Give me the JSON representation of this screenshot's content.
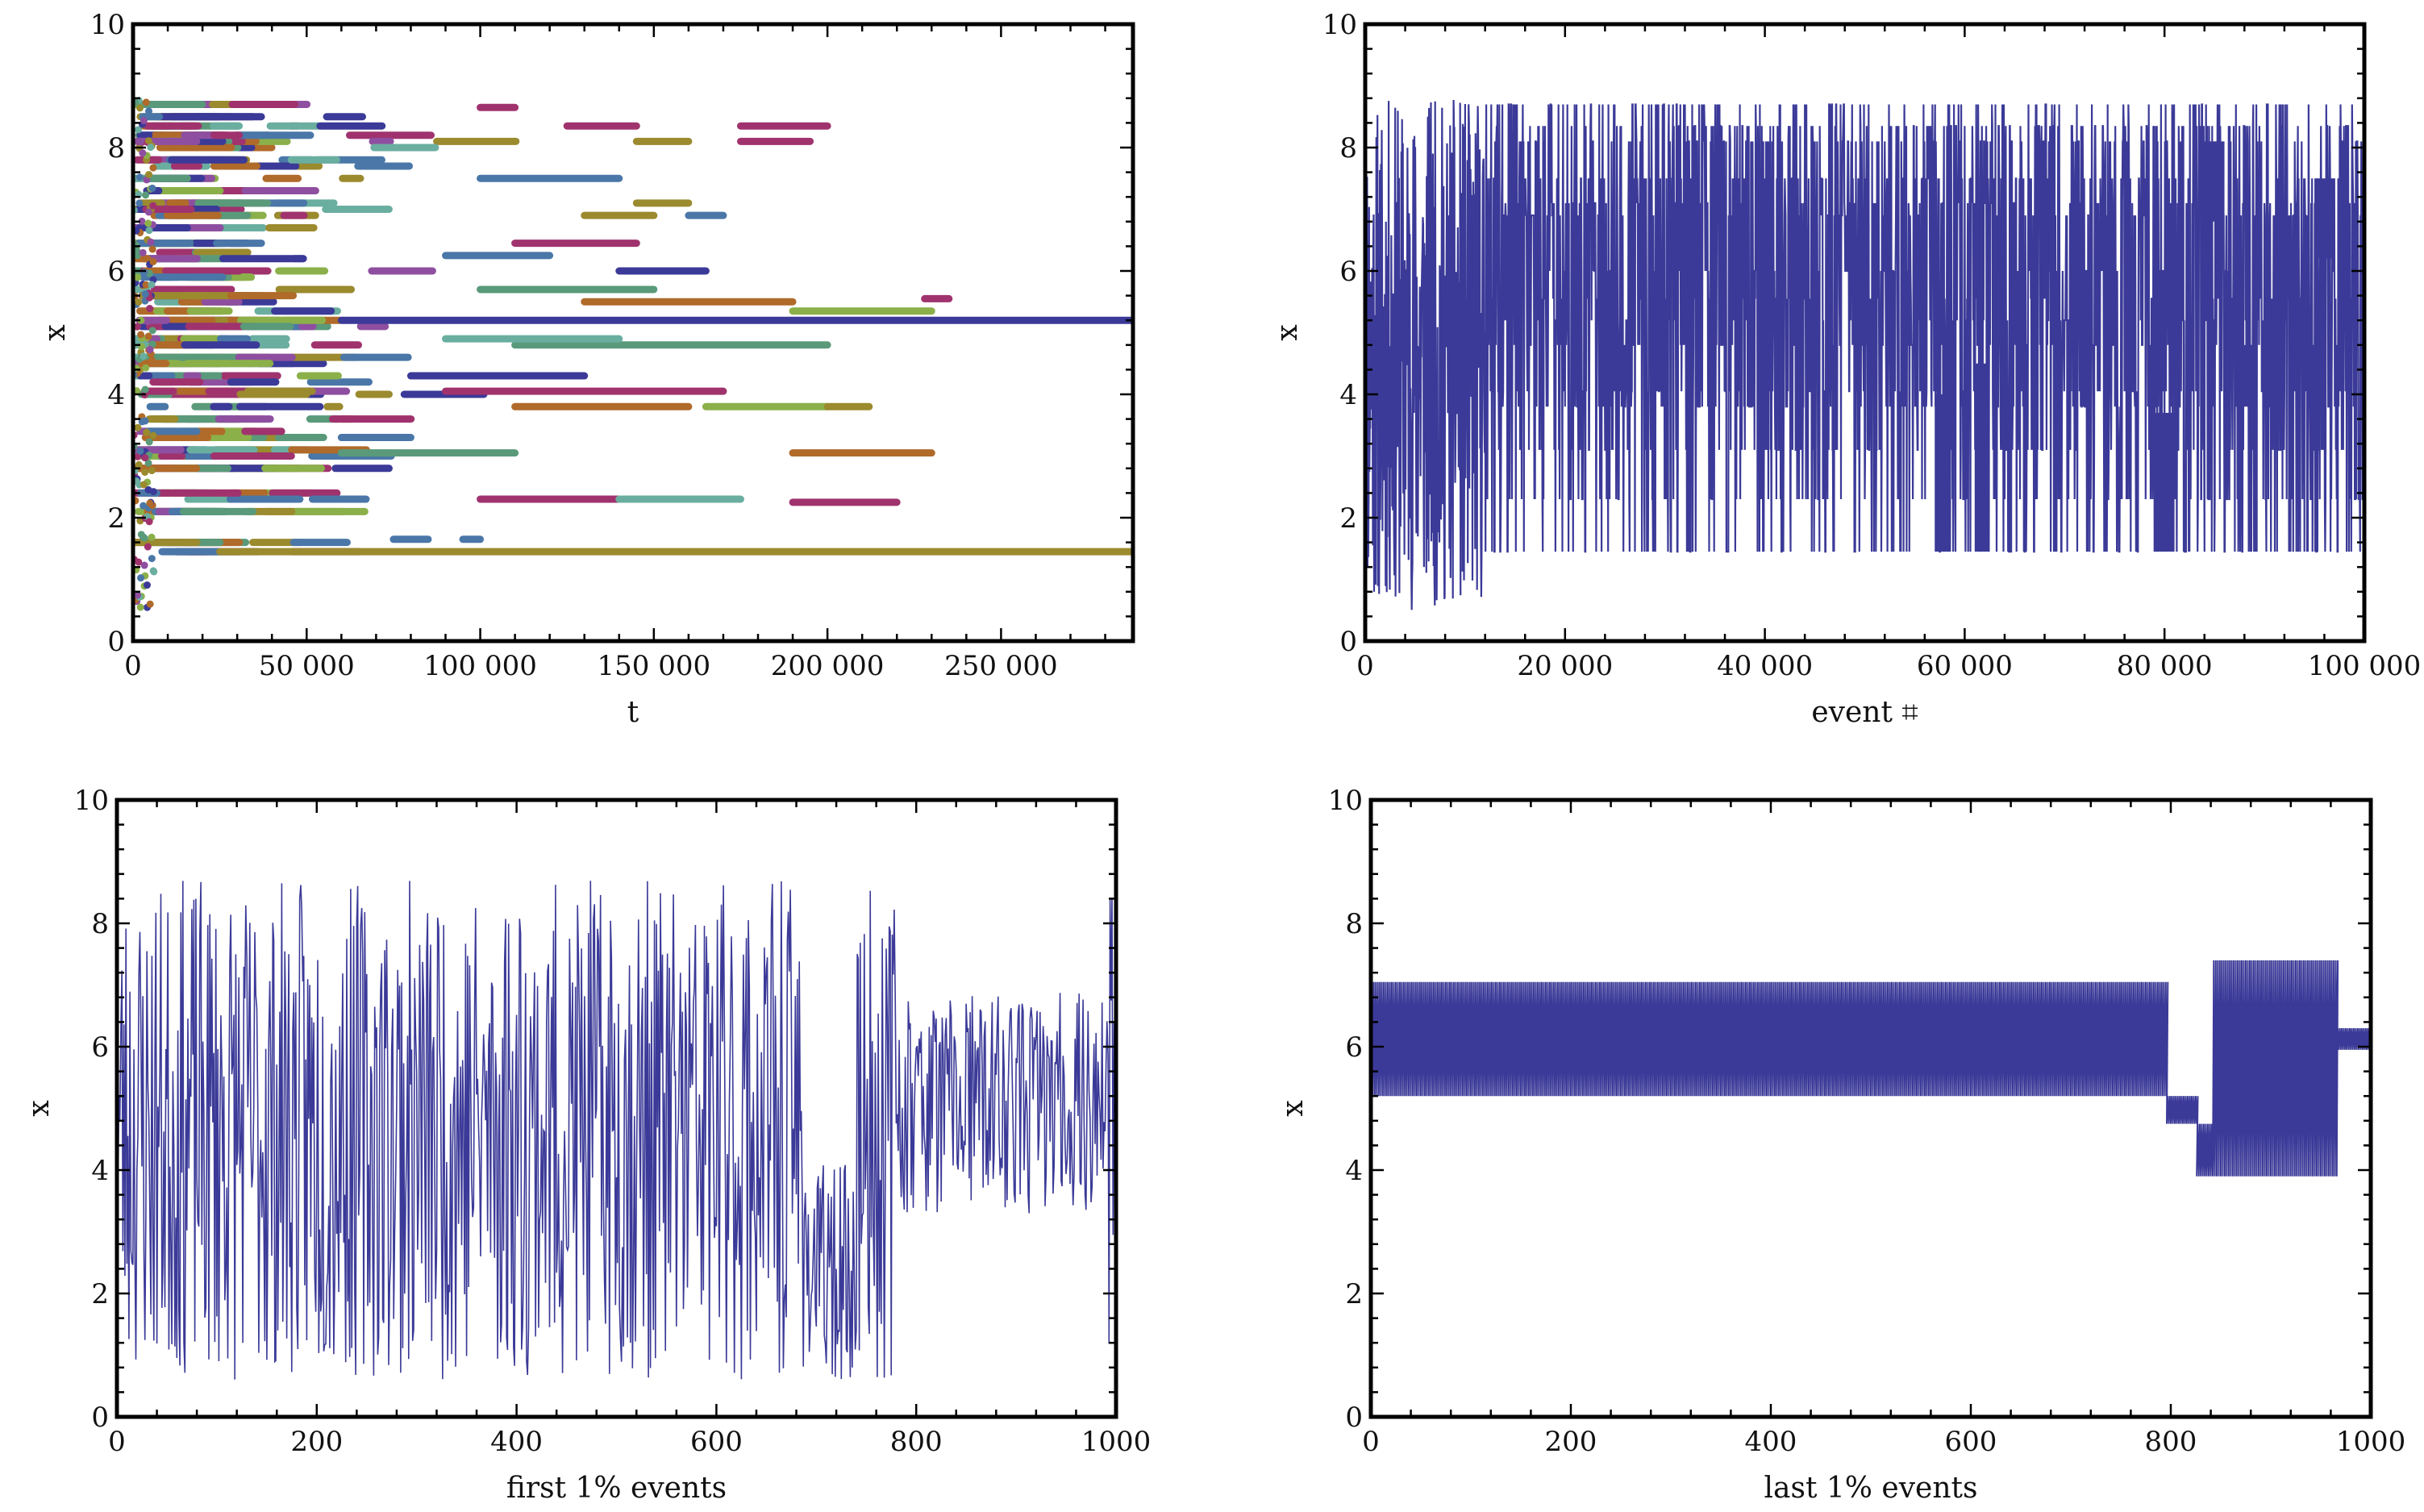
{
  "colors": {
    "line": "#3b3a98",
    "palette": [
      "#3b3a98",
      "#9b8a2e",
      "#a0336e",
      "#5a9a7a",
      "#4a77a8",
      "#8bb04a",
      "#8f4fa0",
      "#b06a2a",
      "#6aaea0"
    ]
  },
  "chart_data": [
    {
      "id": "topleft",
      "type": "scatter",
      "title": "",
      "xlabel": "t",
      "ylabel": "x",
      "xlim": [
        0,
        288000
      ],
      "ylim": [
        0,
        10
      ],
      "xticks": [
        0,
        50000,
        100000,
        150000,
        200000,
        250000
      ],
      "xtick_labels": [
        "0",
        "50 000",
        "100 000",
        "150 000",
        "200 000",
        "250 000"
      ],
      "yticks": [
        0,
        2,
        4,
        6,
        8,
        10
      ],
      "ytick_labels": [
        "0",
        "2",
        "4",
        "6",
        "8",
        "10"
      ],
      "segments": [
        {
          "y": 5.2,
          "x0": 60000,
          "x1": 288000,
          "color": 0
        },
        {
          "y": 1.45,
          "x0": 25000,
          "x1": 288000,
          "color": 1
        },
        {
          "y": 5.5,
          "x0": 130000,
          "x1": 190000,
          "color": 7
        },
        {
          "y": 5.35,
          "x0": 190000,
          "x1": 230000,
          "color": 5
        },
        {
          "y": 5.55,
          "x0": 228000,
          "x1": 235000,
          "color": 2
        },
        {
          "y": 4.8,
          "x0": 110000,
          "x1": 200000,
          "color": 3
        },
        {
          "y": 4.05,
          "x0": 90000,
          "x1": 170000,
          "color": 2
        },
        {
          "y": 3.8,
          "x0": 110000,
          "x1": 160000,
          "color": 7
        },
        {
          "y": 3.8,
          "x0": 165000,
          "x1": 200000,
          "color": 5
        },
        {
          "y": 3.05,
          "x0": 190000,
          "x1": 230000,
          "color": 7
        },
        {
          "y": 3.05,
          "x0": 60000,
          "x1": 110000,
          "color": 3
        },
        {
          "y": 2.3,
          "x0": 100000,
          "x1": 140000,
          "color": 2
        },
        {
          "y": 2.3,
          "x0": 140000,
          "x1": 175000,
          "color": 8
        },
        {
          "y": 2.25,
          "x0": 190000,
          "x1": 220000,
          "color": 2
        },
        {
          "y": 1.65,
          "x0": 75000,
          "x1": 85000,
          "color": 4
        },
        {
          "y": 1.65,
          "x0": 95000,
          "x1": 100000,
          "color": 4
        },
        {
          "y": 8.35,
          "x0": 175000,
          "x1": 200000,
          "color": 2
        },
        {
          "y": 8.1,
          "x0": 175000,
          "x1": 195000,
          "color": 2
        },
        {
          "y": 8.35,
          "x0": 125000,
          "x1": 145000,
          "color": 2
        },
        {
          "y": 8.65,
          "x0": 100000,
          "x1": 110000,
          "color": 2
        },
        {
          "y": 8.1,
          "x0": 145000,
          "x1": 160000,
          "color": 1
        },
        {
          "y": 7.5,
          "x0": 100000,
          "x1": 140000,
          "color": 4
        },
        {
          "y": 6.9,
          "x0": 160000,
          "x1": 170000,
          "color": 4
        },
        {
          "y": 6.9,
          "x0": 130000,
          "x1": 150000,
          "color": 1
        },
        {
          "y": 7.1,
          "x0": 145000,
          "x1": 160000,
          "color": 1
        },
        {
          "y": 6.45,
          "x0": 110000,
          "x1": 145000,
          "color": 2
        },
        {
          "y": 6.25,
          "x0": 90000,
          "x1": 120000,
          "color": 4
        },
        {
          "y": 6.0,
          "x0": 140000,
          "x1": 165000,
          "color": 0
        },
        {
          "y": 5.7,
          "x0": 100000,
          "x1": 150000,
          "color": 3
        },
        {
          "y": 4.3,
          "x0": 80000,
          "x1": 130000,
          "color": 0
        },
        {
          "y": 4.9,
          "x0": 90000,
          "x1": 140000,
          "color": 8
        },
        {
          "y": 3.3,
          "x0": 60000,
          "x1": 80000,
          "color": 4
        },
        {
          "y": 3.8,
          "x0": 200000,
          "x1": 212000,
          "color": 1
        }
      ],
      "dense_cluster": {
        "x0": 0,
        "x1": 110000,
        "y0": 1.4,
        "y1": 8.8,
        "seed": 7
      }
    },
    {
      "id": "topright",
      "type": "line",
      "title": "",
      "xlabel": "event ⌗",
      "ylabel": "x",
      "xlim": [
        0,
        100000
      ],
      "ylim": [
        0,
        10
      ],
      "xticks": [
        0,
        20000,
        40000,
        60000,
        80000,
        100000
      ],
      "xtick_labels": [
        "0",
        "20 000",
        "40 000",
        "60 000",
        "80 000",
        "100 000"
      ],
      "yticks": [
        0,
        2,
        4,
        6,
        8,
        10
      ],
      "ytick_labels": [
        "0",
        "2",
        "4",
        "6",
        "8",
        "10"
      ],
      "levels": [
        1.45,
        2.3,
        3.1,
        3.8,
        4.05,
        4.8,
        5.2,
        5.55,
        6.0,
        6.9,
        7.1,
        7.5,
        8.1,
        8.35,
        8.7
      ],
      "seed": 11
    },
    {
      "id": "bottomleft",
      "type": "line",
      "title": "",
      "xlabel": "first 1% events",
      "ylabel": "x",
      "xlim": [
        0,
        1000
      ],
      "ylim": [
        0,
        10
      ],
      "xticks": [
        0,
        200,
        400,
        600,
        800,
        1000
      ],
      "xtick_labels": [
        "0",
        "200",
        "400",
        "600",
        "800",
        "1000"
      ],
      "yticks": [
        0,
        2,
        4,
        6,
        8,
        10
      ],
      "ytick_labels": [
        "0",
        "2",
        "4",
        "6",
        "8",
        "10"
      ],
      "n_points": 1000,
      "seed": 23
    },
    {
      "id": "bottomright",
      "type": "line",
      "title": "",
      "xlabel": "last 1% events",
      "ylabel": "x",
      "xlim": [
        0,
        1000
      ],
      "ylim": [
        0,
        10
      ],
      "xticks": [
        0,
        200,
        400,
        600,
        800,
        1000
      ],
      "xtick_labels": [
        "0",
        "200",
        "400",
        "600",
        "800",
        "1000"
      ],
      "yticks": [
        0,
        2,
        4,
        6,
        8,
        10
      ],
      "ytick_labels": [
        "0",
        "2",
        "4",
        "6",
        "8",
        "10"
      ],
      "oscillation_blocks": [
        {
          "x0": 0,
          "x1": 796,
          "low": 5.2,
          "high": 7.05
        },
        {
          "x0": 796,
          "x1": 826,
          "low": 4.75,
          "high": 5.2
        },
        {
          "x0": 826,
          "x1": 842,
          "low": 3.9,
          "high": 4.75
        },
        {
          "x0": 842,
          "x1": 966,
          "low": 3.9,
          "high": 7.4
        },
        {
          "x0": 966,
          "x1": 1000,
          "low": 5.95,
          "high": 6.3
        }
      ]
    }
  ]
}
